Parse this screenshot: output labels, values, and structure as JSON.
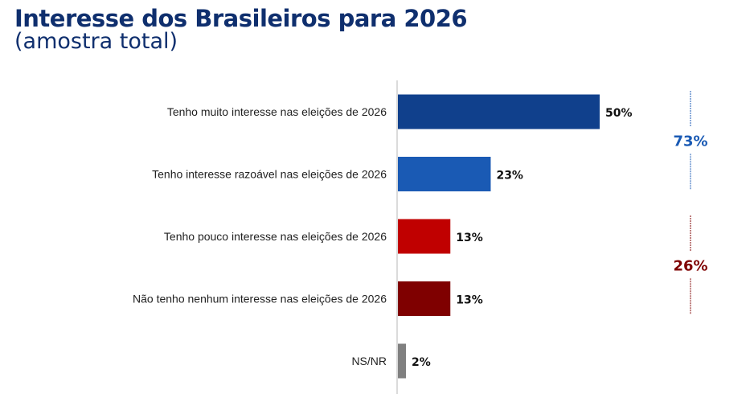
{
  "chart_data": {
    "type": "bar",
    "orientation": "horizontal",
    "title": "Interesse dos Brasileiros para 2026",
    "subtitle": "(amostra total)",
    "categories": [
      "Tenho muito interesse nas eleições de 2026",
      "Tenho interesse razoável nas eleições de 2026",
      "Tenho pouco interesse nas eleições de 2026",
      "Não tenho nenhum interesse nas eleições de 2026",
      "NS/NR"
    ],
    "values": [
      50,
      23,
      13,
      13,
      2
    ],
    "value_labels": [
      "50%",
      "23%",
      "13%",
      "13%",
      "2%"
    ],
    "colors": [
      "#10408c",
      "#1a5ab4",
      "#c00000",
      "#7f0000",
      "#808080"
    ],
    "xlim": [
      0,
      80
    ],
    "grid": false,
    "groups": [
      {
        "label": "73%",
        "value": 73,
        "members": [
          0,
          1
        ],
        "color": "#1a5ab4"
      },
      {
        "label": "26%",
        "value": 26,
        "members": [
          2,
          3
        ],
        "color": "#7f0000"
      }
    ]
  }
}
